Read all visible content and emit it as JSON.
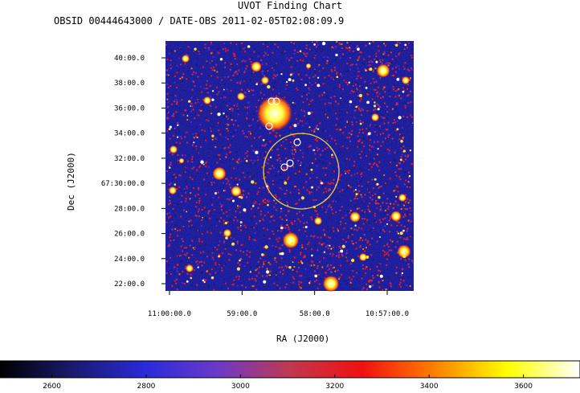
{
  "chart_data": {
    "type": "heatmap",
    "title": "UVOT Finding Chart",
    "subtitle": "OBSID 00444643000 / DATE-OBS 2011-02-05T02:08:09.9",
    "xlabel": "RA (J2000)",
    "ylabel": "Dec (J2000)",
    "x_ticks": [
      {
        "label": "11:00:00.0",
        "value": 0
      },
      {
        "label": "59:00.0",
        "value": 1
      },
      {
        "label": "58:00.0",
        "value": 2
      },
      {
        "label": "10:57:00.0",
        "value": 3
      }
    ],
    "y_ticks": [
      {
        "label": "40:00.0",
        "value": 40
      },
      {
        "label": "38:00.0",
        "value": 38
      },
      {
        "label": "36:00.0",
        "value": 36
      },
      {
        "label": "34:00.0",
        "value": 34
      },
      {
        "label": "32:00.0",
        "value": 32
      },
      {
        "label": "67:30:00.0",
        "value": 30
      },
      {
        "label": "28:00.0",
        "value": 28
      },
      {
        "label": "26:00.0",
        "value": 26
      },
      {
        "label": "24:00.0",
        "value": 24
      },
      {
        "label": "22:00.0",
        "value": 22
      }
    ],
    "colorbar": {
      "range": [
        2490,
        3720
      ],
      "ticks": [
        2600,
        2800,
        3000,
        3200,
        3400,
        3600
      ],
      "colors": [
        "#000000",
        "#1a1a6e",
        "#2a2ad8",
        "#6a3ac8",
        "#c03850",
        "#f01010",
        "#ff8000",
        "#ffff00",
        "#ffffff"
      ]
    },
    "error_circle_color": "#e8d040",
    "source_circle_color": "#ffffff"
  }
}
